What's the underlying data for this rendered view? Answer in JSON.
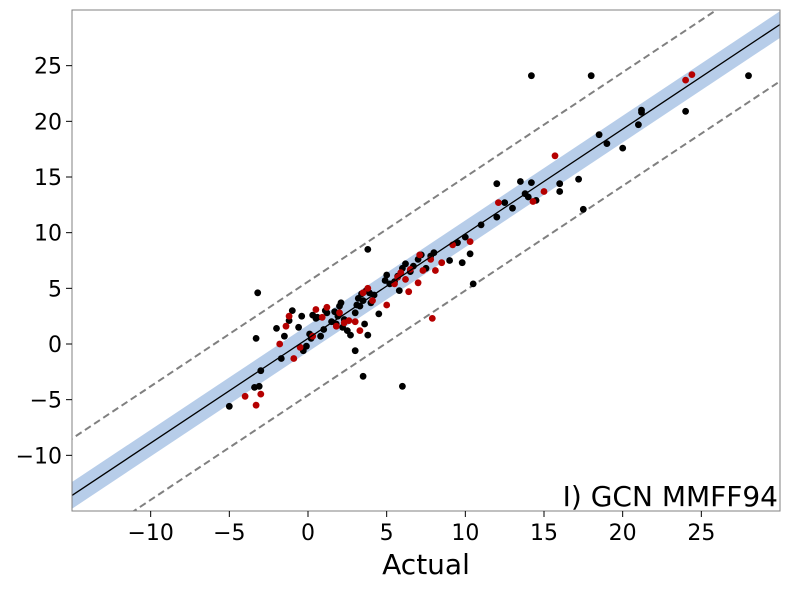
{
  "chart_data": {
    "type": "scatter",
    "title": "",
    "xlabel": "Actual",
    "ylabel": "",
    "annotation": "I) GCN MMFF94",
    "xlim": [
      -15,
      30
    ],
    "ylim": [
      -15,
      30
    ],
    "xticks": [
      -10,
      -5,
      0,
      5,
      10,
      15,
      20,
      25
    ],
    "yticks": [
      -10,
      -5,
      0,
      5,
      10,
      15,
      20,
      25
    ],
    "xtick_labels": [
      "−10",
      "−5",
      "0",
      "5",
      "10",
      "15",
      "20",
      "25"
    ],
    "ytick_labels": [
      "−10",
      "−5",
      "0",
      "5",
      "10",
      "15",
      "20",
      "25"
    ],
    "grid": false,
    "legend": "none",
    "fit_line": {
      "slope": 0.94,
      "intercept": 0.5,
      "color": "#000000"
    },
    "confidence_band": {
      "halfwidth": 1.2,
      "color": "#b7cde9"
    },
    "bound_lines": [
      {
        "slope": 0.94,
        "intercept": 5.6,
        "color": "#808080",
        "dash": true
      },
      {
        "slope": 0.94,
        "intercept": -4.6,
        "color": "#808080",
        "dash": true
      }
    ],
    "series": [
      {
        "color": "#000000",
        "x": [
          -5,
          -3.4,
          -3.3,
          -3.2,
          -3.1,
          -3.0,
          -2.0,
          -1.7,
          -1.5,
          -1.2,
          -1.0,
          -0.6,
          -0.4,
          -0.3,
          -0.1,
          0.1,
          0.2,
          0.3,
          0.5,
          0.6,
          0.8,
          1.0,
          1.1,
          1.2,
          1.5,
          1.7,
          1.8,
          1.9,
          2.0,
          2.1,
          2.2,
          2.3,
          2.5,
          2.7,
          3.0,
          3.1,
          3.2,
          3.3,
          3.4,
          3.5,
          3.6,
          3.7,
          3.8,
          3.9,
          4.0,
          4.2,
          4.5,
          4.9,
          5.0,
          5.2,
          5.5,
          5.7,
          5.8,
          6.0,
          6.2,
          6.5,
          6.7,
          7.0,
          7.2,
          7.5,
          7.8,
          8.0,
          9.0,
          9.5,
          9.8,
          10.0,
          10.3,
          10.5,
          11.0,
          12.0,
          12.0,
          12.5,
          13.0,
          13.5,
          13.8,
          14.0,
          14.2,
          14.5,
          16.0,
          16.0,
          17.2,
          17.5,
          18.0,
          18.5,
          19.0,
          20.0,
          21.0,
          21.2,
          21.2,
          24.0,
          28.0,
          14.2,
          6.0,
          3.5,
          3.0,
          3.8
        ],
        "y": [
          -5.6,
          -3.9,
          0.5,
          4.6,
          -3.8,
          -2.4,
          1.4,
          -1.3,
          0.7,
          2.1,
          3.0,
          1.5,
          2.5,
          -0.6,
          -0.2,
          0.9,
          0.5,
          2.6,
          2.3,
          2.4,
          0.7,
          1.3,
          3.0,
          2.8,
          2.0,
          2.9,
          1.8,
          2.5,
          3.4,
          3.7,
          1.5,
          2.2,
          1.2,
          0.8,
          2.8,
          3.5,
          4.1,
          3.4,
          4.5,
          3.9,
          1.8,
          4.8,
          8.5,
          4.6,
          3.7,
          4.4,
          2.7,
          5.7,
          6.2,
          5.4,
          5.6,
          6.1,
          4.8,
          6.8,
          7.2,
          6.5,
          7.0,
          7.6,
          8.0,
          6.8,
          7.9,
          8.2,
          7.5,
          9.1,
          7.3,
          9.6,
          8.1,
          5.4,
          10.7,
          11.4,
          14.4,
          12.7,
          12.2,
          14.6,
          13.5,
          13.2,
          14.5,
          12.9,
          13.7,
          14.4,
          14.8,
          12.1,
          24.1,
          18.8,
          18.0,
          17.6,
          19.7,
          20.8,
          21.0,
          20.9,
          24.1,
          24.1,
          -3.8,
          -2.9,
          -0.6,
          0.8
        ]
      },
      {
        "color": "#b50000",
        "x": [
          -4,
          -3.3,
          -3.0,
          -1.8,
          -1.4,
          -1.2,
          -0.9,
          -0.5,
          0.3,
          0.5,
          0.9,
          1.2,
          1.8,
          2.0,
          2.3,
          2.6,
          3.0,
          3.3,
          3.5,
          3.8,
          4.1,
          5.0,
          5.5,
          5.9,
          6.2,
          6.5,
          7.0,
          7.3,
          7.8,
          8.1,
          8.5,
          9.2,
          10.3,
          12.1,
          14.3,
          15.0,
          15.7,
          24.0,
          24.4,
          7.9,
          6.4,
          7.1,
          5.7
        ],
        "y": [
          -4.7,
          -5.5,
          -4.5,
          0.0,
          1.6,
          2.5,
          -1.3,
          -0.3,
          0.7,
          3.1,
          2.4,
          3.3,
          1.6,
          2.8,
          1.9,
          2.1,
          2.0,
          1.2,
          4.6,
          5.0,
          3.9,
          3.5,
          5.4,
          6.4,
          5.8,
          6.7,
          5.5,
          6.6,
          7.6,
          6.6,
          7.3,
          8.9,
          9.2,
          12.7,
          12.8,
          13.7,
          16.9,
          23.7,
          24.2,
          2.3,
          4.7,
          8.0,
          6.0
        ]
      }
    ]
  }
}
